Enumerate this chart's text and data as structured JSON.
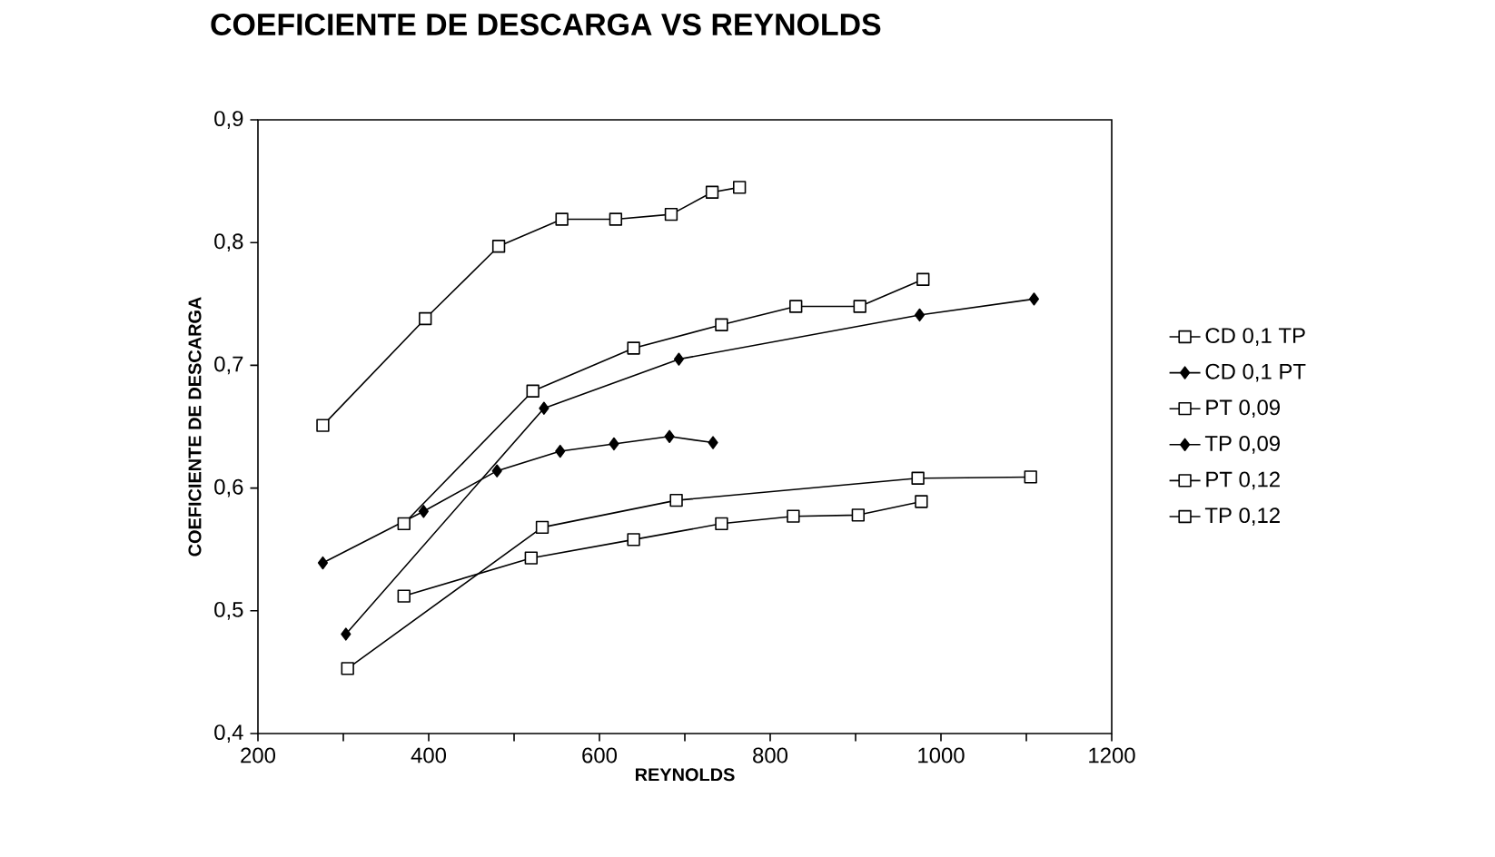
{
  "chart_data": {
    "type": "line",
    "title": "COEFICIENTE DE DESCARGA VS REYNOLDS",
    "xlabel": "REYNOLDS",
    "ylabel": "COEFICIENTE DE DESCARGA",
    "xlim": [
      200,
      1200
    ],
    "xticks": [
      200,
      {
        "value": 300,
        "label": null
      },
      400,
      {
        "value": 500,
        "label": null
      },
      600,
      {
        "value": 700,
        "label": null
      },
      800,
      {
        "value": 900,
        "label": null
      },
      1000,
      {
        "value": 1100,
        "label": null
      },
      1200
    ],
    "ylim": [
      0.4,
      0.9
    ],
    "yticks": [
      {
        "value": 0.4,
        "label": "0,4"
      },
      {
        "value": 0.5,
        "label": "0,5"
      },
      {
        "value": 0.6,
        "label": "0,6"
      },
      {
        "value": 0.7,
        "label": "0,7"
      },
      {
        "value": 0.8,
        "label": "0,8"
      },
      {
        "value": 0.9,
        "label": "0,9"
      }
    ],
    "legend": "right",
    "grid": false,
    "line_style": "solid",
    "series": [
      {
        "name": "CD 0,1 TP",
        "color": "#000000",
        "marker": "square",
        "x": [
          305,
          533,
          690,
          973,
          1105
        ],
        "values": [
          0.453,
          0.568,
          0.59,
          0.608,
          0.609
        ]
      },
      {
        "name": "CD 0,1 PT",
        "color": "#000000",
        "marker": "diamond",
        "x": [
          303,
          535,
          693,
          975,
          1109
        ],
        "values": [
          0.481,
          0.665,
          0.705,
          0.741,
          0.754
        ]
      },
      {
        "name": "PT 0,09",
        "color": "#000000",
        "marker": "square",
        "x": [
          276,
          396,
          482,
          556,
          619,
          684,
          732,
          764
        ],
        "values": [
          0.651,
          0.738,
          0.797,
          0.819,
          0.819,
          0.823,
          0.841,
          0.845
        ]
      },
      {
        "name": "TP 0,09",
        "color": "#000000",
        "marker": "diamond",
        "x": [
          276,
          394,
          480,
          554,
          617,
          682,
          733
        ],
        "values": [
          0.539,
          0.581,
          0.614,
          0.63,
          0.636,
          0.642,
          0.637
        ]
      },
      {
        "name": "PT 0,12",
        "color": "#000000",
        "marker": "square",
        "x": [
          371,
          522,
          640,
          743,
          830,
          905,
          979
        ],
        "values": [
          0.571,
          0.679,
          0.714,
          0.733,
          0.748,
          0.748,
          0.77
        ]
      },
      {
        "name": "TP 0,12",
        "color": "#000000",
        "marker": "square",
        "x": [
          371,
          520,
          640,
          743,
          827,
          903,
          977
        ],
        "values": [
          0.512,
          0.543,
          0.558,
          0.571,
          0.577,
          0.578,
          0.589
        ]
      }
    ]
  }
}
